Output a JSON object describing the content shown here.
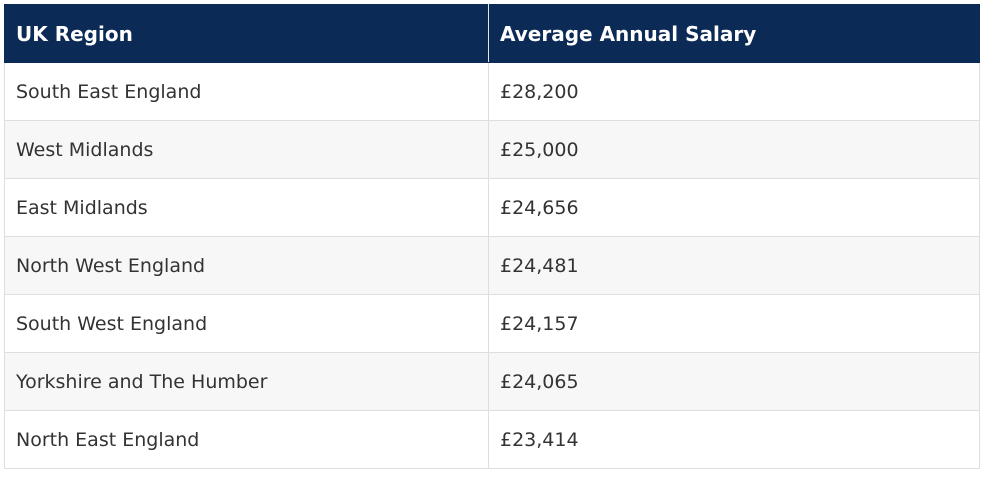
{
  "table": {
    "headers": [
      "UK Region",
      "Average Annual Salary"
    ],
    "rows": [
      [
        "South East England",
        "£28,200"
      ],
      [
        "West Midlands",
        "£25,000"
      ],
      [
        "East Midlands",
        "£24,656"
      ],
      [
        "North West England",
        "£24,481"
      ],
      [
        "South West England",
        "£24,157"
      ],
      [
        "Yorkshire and The Humber",
        "£24,065"
      ],
      [
        "North East England",
        "£23,414"
      ]
    ]
  },
  "colors": {
    "header_background": "#0b2a55",
    "header_text": "#ffffff",
    "row_alt_background": "#f7f7f7",
    "border": "#dedede"
  }
}
